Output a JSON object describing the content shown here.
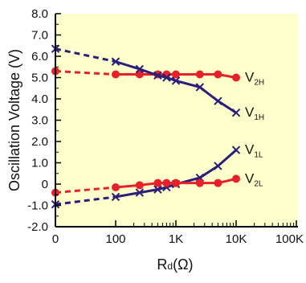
{
  "chart_data": {
    "type": "line",
    "xlabel": "Rd(Ω)",
    "xlabel_main": "R",
    "xlabel_sub": "d",
    "xlabel_unit": "(Ω)",
    "ylabel": "Oscillation Voltage (V)",
    "x_scale": "log (with 0 at origin)",
    "x_tick_labels": [
      "0",
      "100",
      "1K",
      "10K",
      "100K"
    ],
    "y_tick_labels": [
      "8.0",
      "7.0",
      "6.0",
      "5.0",
      "4.0",
      "3.0",
      "2.0",
      "1.0",
      "0",
      "-1.0",
      "-2.0"
    ],
    "ylim": [
      -2.0,
      8.0
    ],
    "xlim": [
      0,
      100000
    ],
    "grid": false,
    "plot_background": "#ffffcc",
    "series": [
      {
        "name": "V2H",
        "label_main": "V",
        "label_sub": "2H",
        "color": "#e8202a",
        "marker": "circle",
        "x": [
          0,
          100,
          250,
          500,
          700,
          1000,
          2500,
          5000,
          10000
        ],
        "y": [
          5.3,
          5.15,
          5.15,
          5.15,
          5.15,
          5.15,
          5.15,
          5.15,
          5.0
        ]
      },
      {
        "name": "V1H",
        "label_main": "V",
        "label_sub": "1H",
        "color": "#2b1d7a",
        "marker": "x",
        "x": [
          0,
          100,
          250,
          500,
          700,
          1000,
          2500,
          5000,
          10000
        ],
        "y": [
          6.35,
          5.75,
          5.4,
          5.1,
          5.0,
          4.85,
          4.55,
          3.9,
          3.35
        ]
      },
      {
        "name": "V1L",
        "label_main": "V",
        "label_sub": "1L",
        "color": "#2b1d7a",
        "marker": "x",
        "x": [
          0,
          100,
          250,
          500,
          700,
          1000,
          2500,
          5000,
          10000
        ],
        "y": [
          -0.95,
          -0.6,
          -0.4,
          -0.25,
          -0.15,
          0.0,
          0.3,
          0.85,
          1.6
        ]
      },
      {
        "name": "V2L",
        "label_main": "V",
        "label_sub": "2L",
        "color": "#e8202a",
        "marker": "circle",
        "x": [
          0,
          100,
          250,
          500,
          700,
          1000,
          2500,
          5000,
          10000
        ],
        "y": [
          -0.4,
          -0.15,
          -0.05,
          0.05,
          0.05,
          0.05,
          0.05,
          0.05,
          0.25
        ]
      }
    ]
  }
}
